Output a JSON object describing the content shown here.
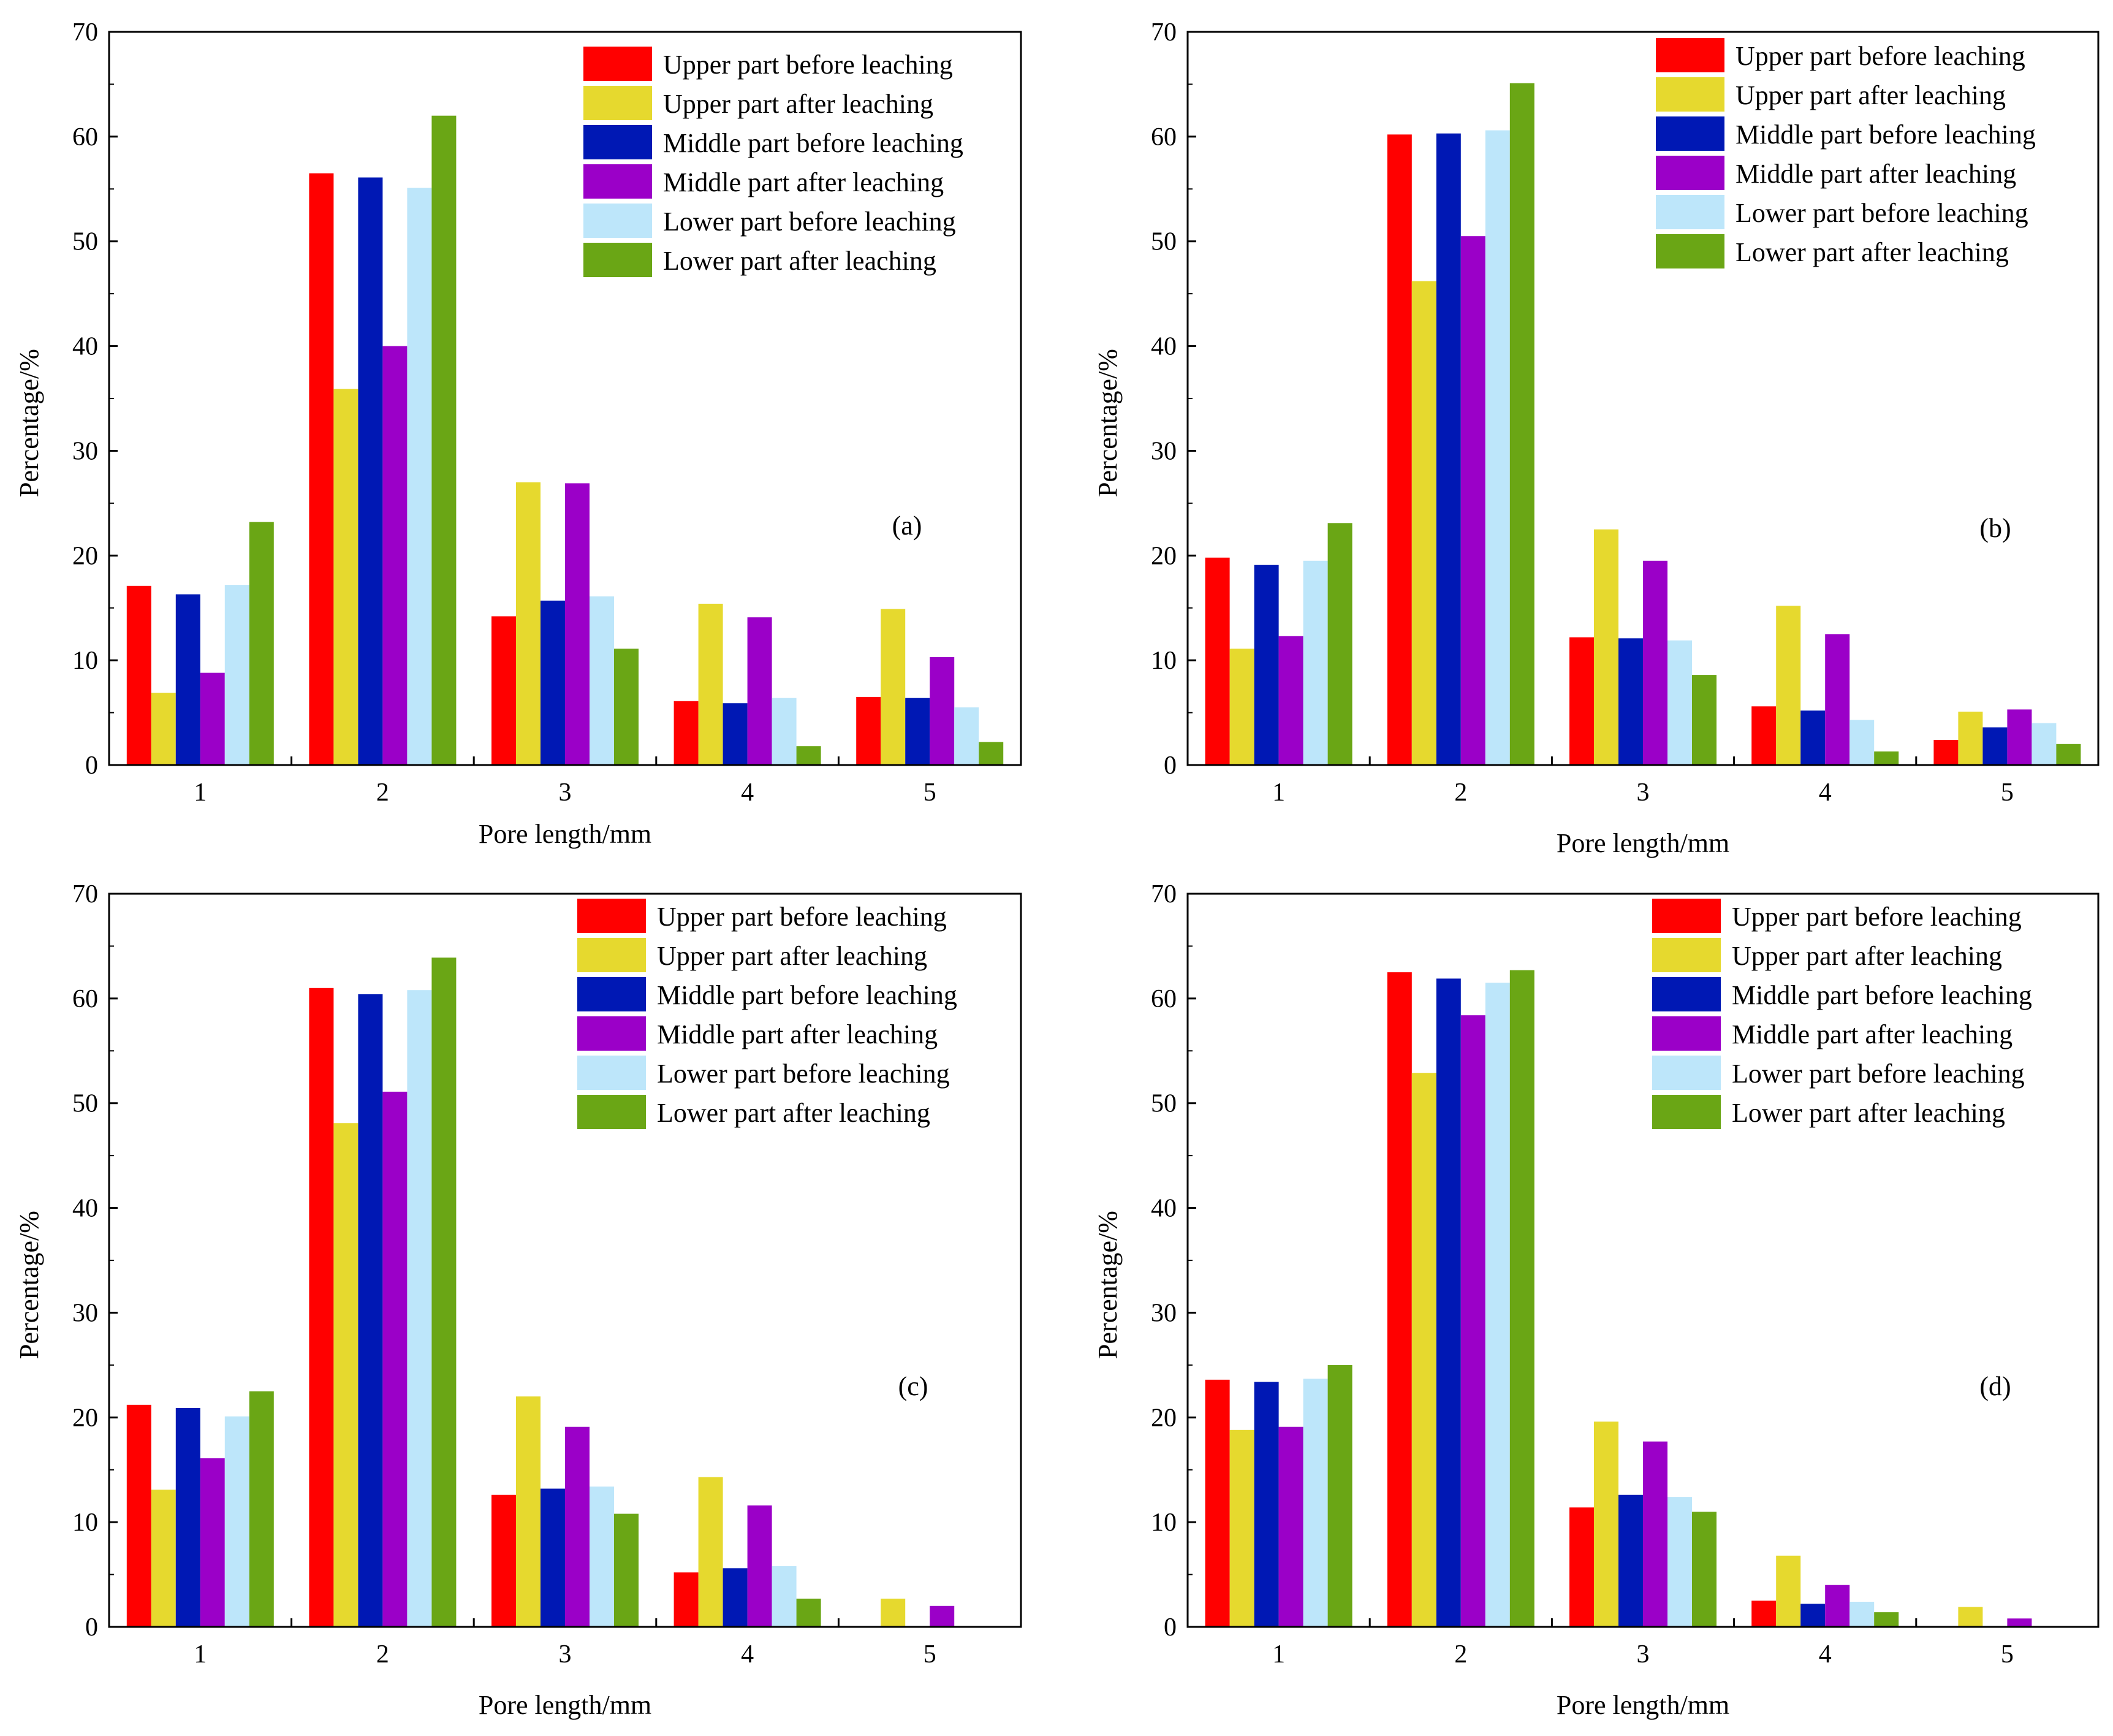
{
  "colors": {
    "upper_before": "#ff0000",
    "upper_after": "#e6d92e",
    "middle_before": "#0018b4",
    "middle_after": "#9b00c8",
    "lower_before": "#bde6fa",
    "lower_after": "#6aa615"
  },
  "chart_data": [
    {
      "type": "bar",
      "panel_label": "(a)",
      "xlabel": "Pore length/mm",
      "ylabel": "Percentage/%",
      "categories": [
        "1",
        "2",
        "3",
        "4",
        "5"
      ],
      "ylim": [
        0,
        70
      ],
      "yticks": [
        "0",
        "10",
        "20",
        "30",
        "40",
        "50",
        "60",
        "70"
      ],
      "legend_position": "top-right",
      "grid": false,
      "series": [
        {
          "name": "Upper part before leaching",
          "color_key": "upper_before",
          "values": [
            17.1,
            56.5,
            14.2,
            6.1,
            6.5
          ]
        },
        {
          "name": "Upper part after leaching",
          "color_key": "upper_after",
          "values": [
            6.9,
            35.9,
            27.0,
            15.4,
            14.9
          ]
        },
        {
          "name": "Middle part before leaching",
          "color_key": "middle_before",
          "values": [
            16.3,
            56.1,
            15.7,
            5.9,
            6.4
          ]
        },
        {
          "name": "Middle part after leaching",
          "color_key": "middle_after",
          "values": [
            8.8,
            40.0,
            26.9,
            14.1,
            10.3
          ]
        },
        {
          "name": "Lower part before leaching",
          "color_key": "lower_before",
          "values": [
            17.2,
            55.1,
            16.1,
            6.4,
            5.5
          ]
        },
        {
          "name": "Lower part after leaching",
          "color_key": "lower_after",
          "values": [
            23.2,
            62.0,
            11.1,
            1.8,
            2.2
          ]
        }
      ]
    },
    {
      "type": "bar",
      "panel_label": "(b)",
      "xlabel": "Pore length/mm",
      "ylabel": "Percentage/%",
      "categories": [
        "1",
        "2",
        "3",
        "4",
        "5"
      ],
      "ylim": [
        0,
        70
      ],
      "yticks": [
        "0",
        "10",
        "20",
        "30",
        "40",
        "50",
        "60",
        "70"
      ],
      "legend_position": "top-right",
      "grid": false,
      "series": [
        {
          "name": "Upper part before leaching",
          "color_key": "upper_before",
          "values": [
            19.8,
            60.2,
            12.2,
            5.6,
            2.4
          ]
        },
        {
          "name": "Upper part after leaching",
          "color_key": "upper_after",
          "values": [
            11.1,
            46.2,
            22.5,
            15.2,
            5.1
          ]
        },
        {
          "name": "Middle part before leaching",
          "color_key": "middle_before",
          "values": [
            19.1,
            60.3,
            12.1,
            5.2,
            3.6
          ]
        },
        {
          "name": "Middle part after leaching",
          "color_key": "middle_after",
          "values": [
            12.3,
            50.5,
            19.5,
            12.5,
            5.3
          ]
        },
        {
          "name": "Lower part before leaching",
          "color_key": "lower_before",
          "values": [
            19.5,
            60.6,
            11.9,
            4.3,
            4.0
          ]
        },
        {
          "name": "Lower part after leaching",
          "color_key": "lower_after",
          "values": [
            23.1,
            65.1,
            8.6,
            1.3,
            2.0
          ]
        }
      ]
    },
    {
      "type": "bar",
      "panel_label": "(c)",
      "xlabel": "Pore length/mm",
      "ylabel": "Percentage/%",
      "categories": [
        "1",
        "2",
        "3",
        "4",
        "5"
      ],
      "ylim": [
        0,
        70
      ],
      "yticks": [
        "0",
        "10",
        "20",
        "30",
        "40",
        "50",
        "60",
        "70"
      ],
      "legend_position": "top-right",
      "grid": false,
      "series": [
        {
          "name": "Upper part before leaching",
          "color_key": "upper_before",
          "values": [
            21.2,
            61.0,
            12.6,
            5.2,
            0
          ]
        },
        {
          "name": "Upper part after leaching",
          "color_key": "upper_after",
          "values": [
            13.1,
            48.1,
            22.0,
            14.3,
            2.7
          ]
        },
        {
          "name": "Middle part before leaching",
          "color_key": "middle_before",
          "values": [
            20.9,
            60.4,
            13.2,
            5.6,
            0
          ]
        },
        {
          "name": "Middle part after leaching",
          "color_key": "middle_after",
          "values": [
            16.1,
            51.1,
            19.1,
            11.6,
            2.0
          ]
        },
        {
          "name": "Lower part before leaching",
          "color_key": "lower_before",
          "values": [
            20.1,
            60.8,
            13.4,
            5.8,
            0
          ]
        },
        {
          "name": "Lower part after leaching",
          "color_key": "lower_after",
          "values": [
            22.5,
            63.9,
            10.8,
            2.7,
            0
          ]
        }
      ]
    },
    {
      "type": "bar",
      "panel_label": "(d)",
      "xlabel": "Pore length/mm",
      "ylabel": "Percentage/%",
      "categories": [
        "1",
        "2",
        "3",
        "4",
        "5"
      ],
      "ylim": [
        0,
        70
      ],
      "yticks": [
        "0",
        "10",
        "20",
        "30",
        "40",
        "50",
        "60",
        "70"
      ],
      "legend_position": "top-right",
      "grid": false,
      "series": [
        {
          "name": "Upper part before leaching",
          "color_key": "upper_before",
          "values": [
            23.6,
            62.5,
            11.4,
            2.5,
            0
          ]
        },
        {
          "name": "Upper part after leaching",
          "color_key": "upper_after",
          "values": [
            18.8,
            52.9,
            19.6,
            6.8,
            1.9
          ]
        },
        {
          "name": "Middle part before leaching",
          "color_key": "middle_before",
          "values": [
            23.4,
            61.9,
            12.6,
            2.2,
            0
          ]
        },
        {
          "name": "Middle part after leaching",
          "color_key": "middle_after",
          "values": [
            19.1,
            58.4,
            17.7,
            4.0,
            0.8
          ]
        },
        {
          "name": "Lower part before leaching",
          "color_key": "lower_before",
          "values": [
            23.7,
            61.5,
            12.4,
            2.4,
            0
          ]
        },
        {
          "name": "Lower part after leaching",
          "color_key": "lower_after",
          "values": [
            25.0,
            62.7,
            11.0,
            1.4,
            0
          ]
        }
      ]
    }
  ]
}
